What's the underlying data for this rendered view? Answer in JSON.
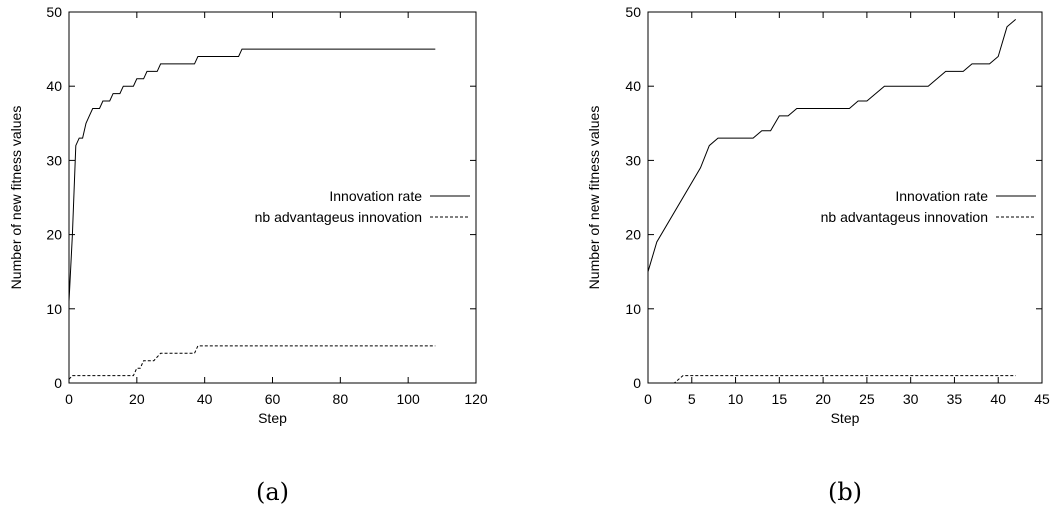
{
  "chart_data": [
    {
      "type": "line",
      "caption": "(a)",
      "xlabel": "Step",
      "ylabel": "Number of new fitness values",
      "xlim": [
        0,
        120
      ],
      "xticks": [
        0,
        20,
        40,
        60,
        80,
        100,
        120
      ],
      "ylim": [
        0,
        50
      ],
      "yticks": [
        0,
        10,
        20,
        30,
        40,
        50
      ],
      "legend": "right",
      "series": [
        {
          "name": "Innovation rate",
          "color": "#000000",
          "line_style": "solid",
          "x": [
            0,
            1,
            2,
            3,
            4,
            5,
            6,
            7,
            9,
            10,
            12,
            13,
            15,
            16,
            19,
            20,
            22,
            23,
            26,
            27,
            37,
            38,
            50,
            51,
            108
          ],
          "values": [
            11,
            20,
            32,
            33,
            33,
            35,
            36,
            37,
            37,
            38,
            38,
            39,
            39,
            40,
            40,
            41,
            41,
            42,
            42,
            43,
            43,
            44,
            44,
            45,
            45
          ]
        },
        {
          "name": "nb advantageus innovation",
          "color": "#000000",
          "line_style": "dashed",
          "x": [
            0,
            1,
            19,
            20,
            21,
            22,
            25,
            27,
            37,
            38,
            108
          ],
          "values": [
            0.5,
            1,
            1,
            2,
            2,
            3,
            3,
            4,
            4,
            5,
            5
          ]
        }
      ]
    },
    {
      "type": "line",
      "caption": "(b)",
      "xlabel": "Step",
      "ylabel": "Number of new fitness values",
      "xlim": [
        0,
        45
      ],
      "xticks": [
        0,
        5,
        10,
        15,
        20,
        25,
        30,
        35,
        40,
        45
      ],
      "ylim": [
        0,
        50
      ],
      "yticks": [
        0,
        10,
        20,
        30,
        40,
        50
      ],
      "legend": "right",
      "series": [
        {
          "name": "Innovation rate",
          "color": "#000000",
          "line_style": "solid",
          "x": [
            0,
            1,
            6,
            7,
            8,
            12,
            13,
            14,
            15,
            16,
            17,
            23,
            24,
            25,
            27,
            32,
            34,
            36,
            37,
            39,
            40,
            41,
            42
          ],
          "values": [
            15,
            19,
            29,
            32,
            33,
            33,
            34,
            34,
            36,
            36,
            37,
            37,
            38,
            38,
            40,
            40,
            42,
            42,
            43,
            43,
            44,
            48,
            49
          ]
        },
        {
          "name": "nb advantageus innovation",
          "color": "#000000",
          "line_style": "dashed",
          "x": [
            0,
            3,
            4,
            42
          ],
          "values": [
            0,
            0,
            1,
            1
          ]
        }
      ]
    }
  ]
}
